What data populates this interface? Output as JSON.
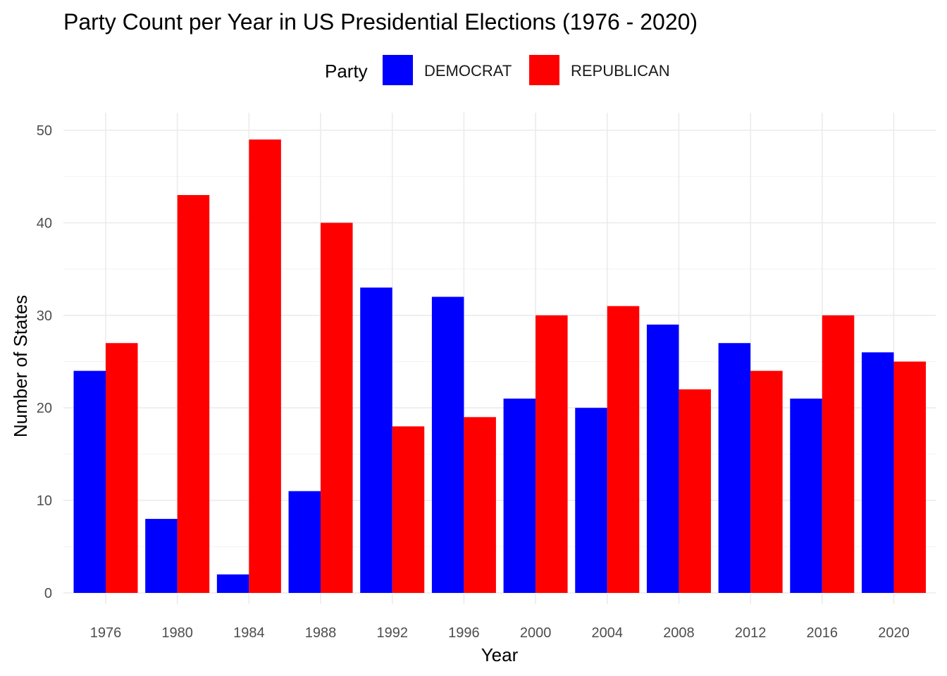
{
  "chart_data": {
    "type": "bar",
    "title": "Party Count per Year in US Presidential Elections (1976 - 2020)",
    "xlabel": "Year",
    "ylabel": "Number of States",
    "categories": [
      "1976",
      "1980",
      "1984",
      "1988",
      "1992",
      "1996",
      "2000",
      "2004",
      "2008",
      "2012",
      "2016",
      "2020"
    ],
    "series": [
      {
        "name": "DEMOCRAT",
        "color": "#0000ff",
        "values": [
          24,
          8,
          2,
          11,
          33,
          32,
          21,
          20,
          29,
          27,
          21,
          26
        ]
      },
      {
        "name": "REPUBLICAN",
        "color": "#ff0000",
        "values": [
          27,
          43,
          49,
          40,
          18,
          19,
          30,
          31,
          22,
          24,
          30,
          25
        ]
      }
    ],
    "ylim": [
      0,
      50
    ],
    "yticks": [
      0,
      10,
      20,
      30,
      40,
      50
    ],
    "grid": true,
    "legend": {
      "title": "Party",
      "position": "top"
    }
  }
}
